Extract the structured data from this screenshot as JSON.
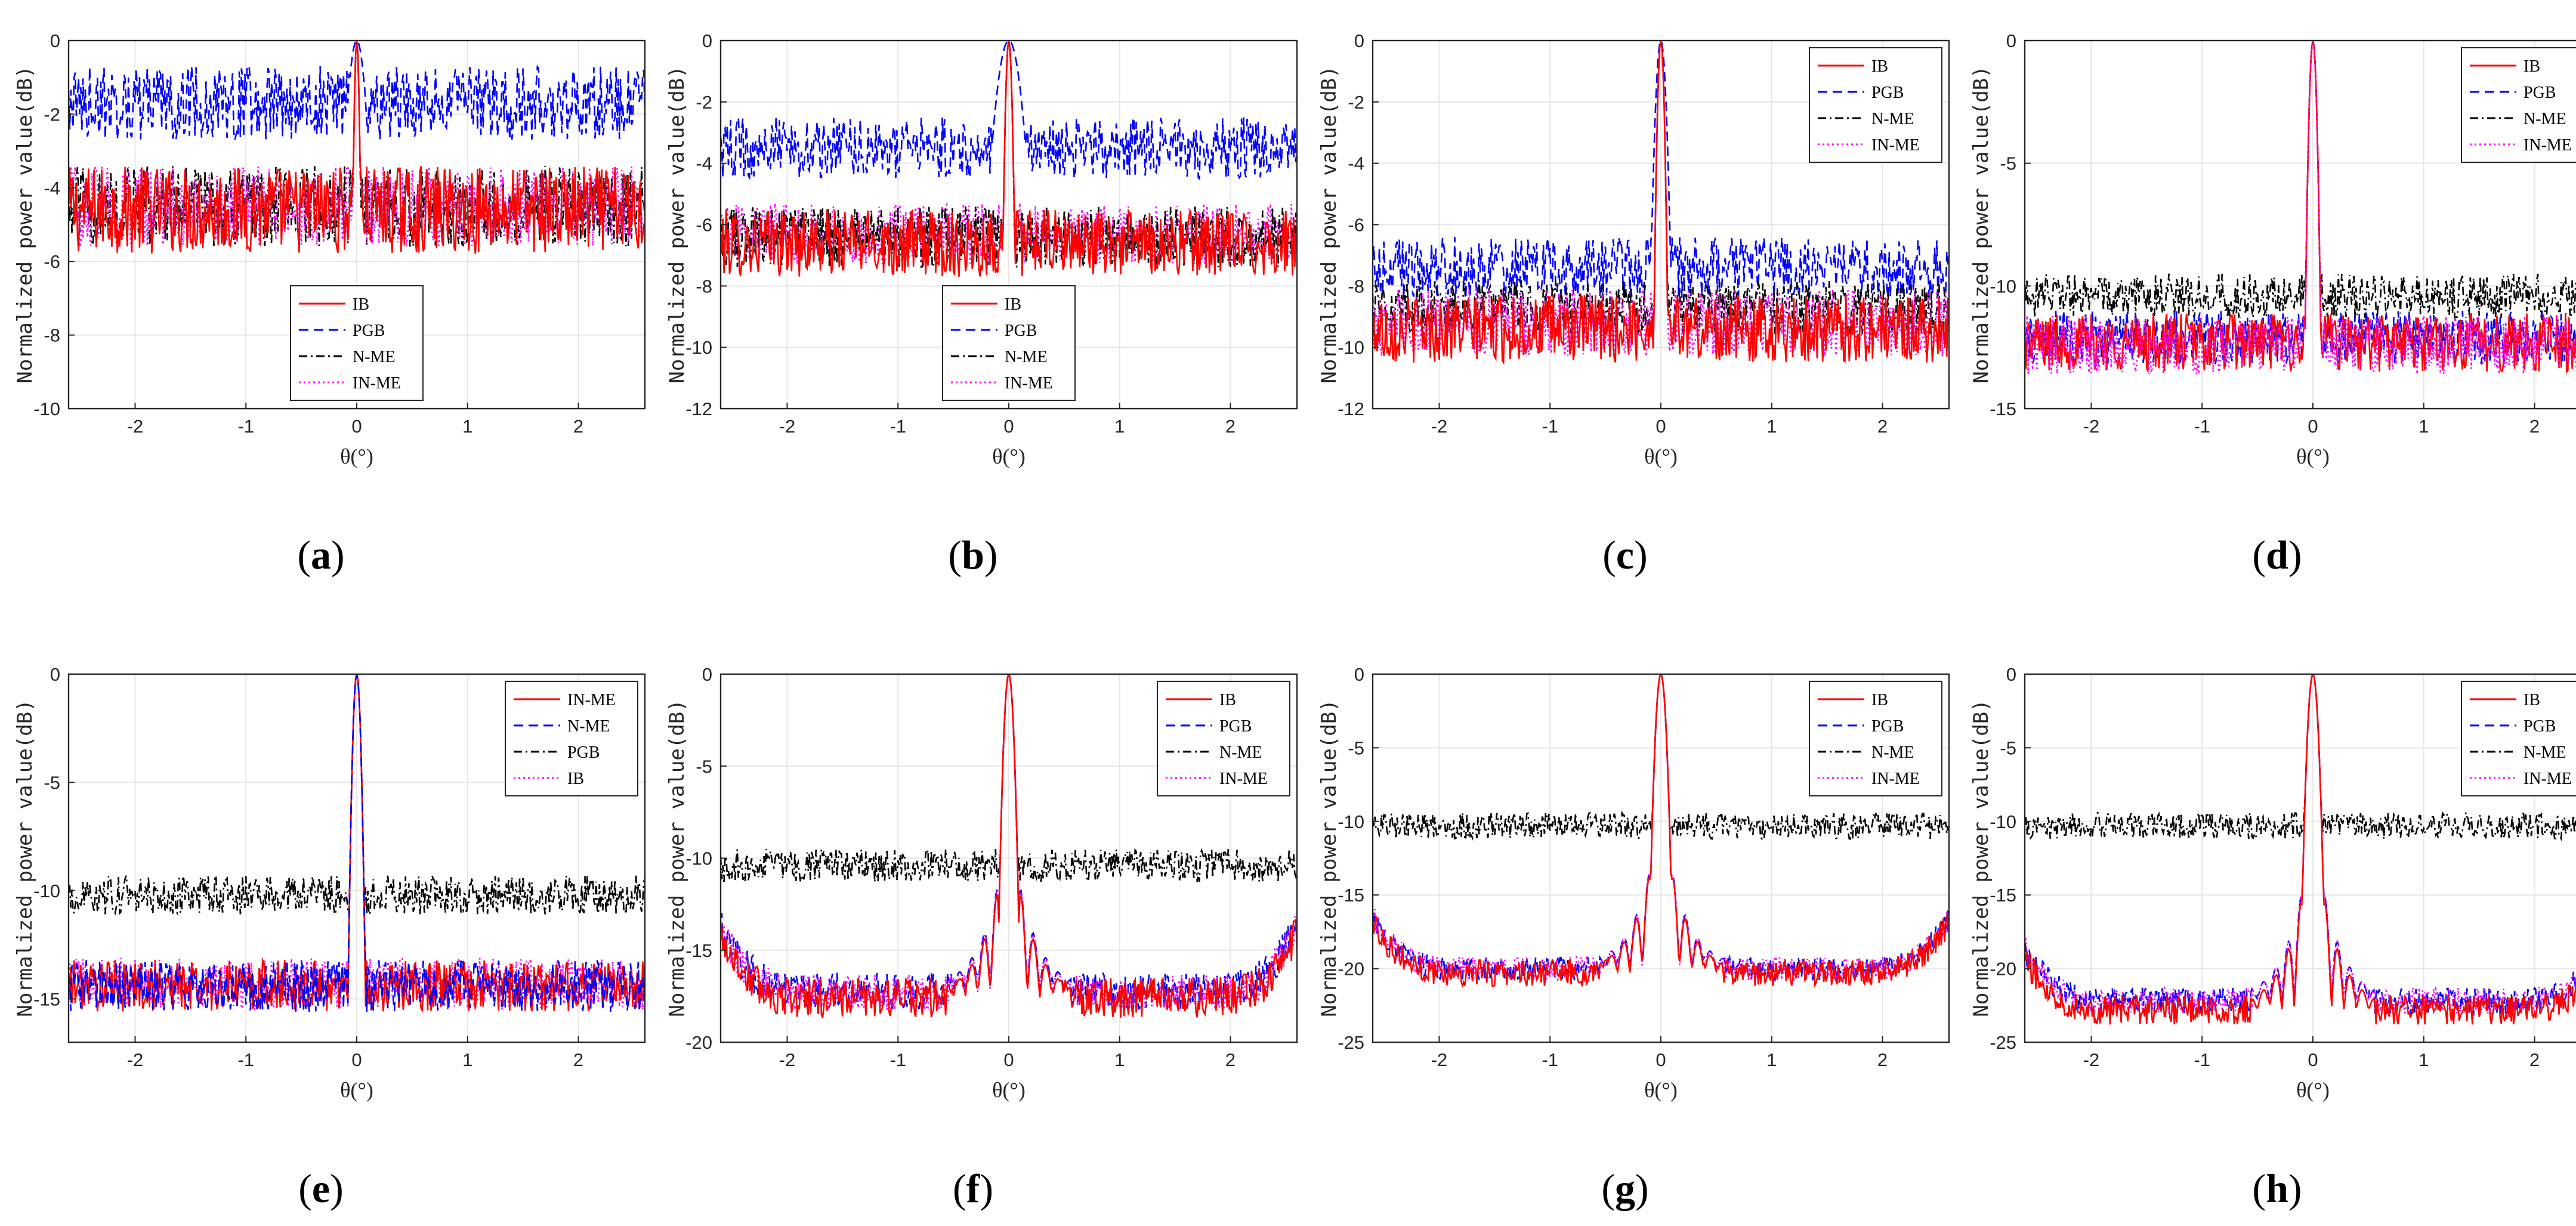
{
  "figure": {
    "label_prefix": "(",
    "label_suffix": ")"
  },
  "chart_data": [
    {
      "label": "a",
      "type": "line",
      "ylabel": "Normalized power value(dB)",
      "xlabel": "θ(°)",
      "xlim": [
        -2.6,
        2.6
      ],
      "ylim": [
        -10,
        0
      ],
      "xticks": [
        "-2",
        "-1",
        "0",
        "1",
        "2"
      ],
      "xtick_values": [
        -2,
        -1,
        0,
        1,
        2
      ],
      "yticks": [
        "0",
        "-2",
        "-4",
        "-6",
        "-8",
        "-10"
      ],
      "ytick_values": [
        0,
        -2,
        -4,
        -6,
        -8,
        -10
      ],
      "legend": {
        "position": "bottom-center",
        "entries": [
          "IB",
          "PGB",
          "N-ME",
          "IN-ME"
        ]
      },
      "series": [
        {
          "name": "IB",
          "color": "#ff0000",
          "style": "solid",
          "floor": -4.6,
          "noise": 1.2,
          "peak": 0,
          "mainlobe_width": 0.04,
          "sidelobe": 0.0
        },
        {
          "name": "PGB",
          "color": "#0000ff",
          "style": "dashed",
          "floor": -1.7,
          "noise": 1.0,
          "peak": 0,
          "mainlobe_width": 0.15,
          "sidelobe": 0.0
        },
        {
          "name": "N-ME",
          "color": "#000000",
          "style": "dashdot",
          "floor": -4.5,
          "noise": 1.1,
          "peak": 0,
          "mainlobe_width": 0.04,
          "sidelobe": 0.0
        },
        {
          "name": "IN-ME",
          "color": "#ff00ff",
          "style": "dotted",
          "floor": -4.5,
          "noise": 1.1,
          "peak": 0,
          "mainlobe_width": 0.04,
          "sidelobe": 0.0
        }
      ]
    },
    {
      "label": "b",
      "type": "line",
      "ylabel": "Normalized power value(dB)",
      "xlabel": "θ(°)",
      "xlim": [
        -2.6,
        2.6
      ],
      "ylim": [
        -12,
        0
      ],
      "xticks": [
        "-2",
        "-1",
        "0",
        "1",
        "2"
      ],
      "xtick_values": [
        -2,
        -1,
        0,
        1,
        2
      ],
      "yticks": [
        "0",
        "-2",
        "-4",
        "-6",
        "-8",
        "-10",
        "-12"
      ],
      "ytick_values": [
        0,
        -2,
        -4,
        -6,
        -8,
        -10,
        -12
      ],
      "legend": {
        "position": "bottom-center",
        "entries": [
          "IB",
          "PGB",
          "N-ME",
          "IN-ME"
        ]
      },
      "series": [
        {
          "name": "IB",
          "color": "#ff0000",
          "style": "solid",
          "floor": -6.6,
          "noise": 1.1,
          "peak": 0,
          "mainlobe_width": 0.05,
          "sidelobe": 0.0
        },
        {
          "name": "PGB",
          "color": "#0000ff",
          "style": "dashed",
          "floor": -3.5,
          "noise": 1.0,
          "peak": 0,
          "mainlobe_width": 0.2,
          "sidelobe": 0.0
        },
        {
          "name": "N-ME",
          "color": "#000000",
          "style": "dashdot",
          "floor": -6.4,
          "noise": 1.0,
          "peak": 0,
          "mainlobe_width": 0.05,
          "sidelobe": 0.0
        },
        {
          "name": "IN-ME",
          "color": "#ff00ff",
          "style": "dotted",
          "floor": -6.3,
          "noise": 1.0,
          "peak": 0,
          "mainlobe_width": 0.05,
          "sidelobe": 0.0
        }
      ]
    },
    {
      "label": "c",
      "type": "line",
      "ylabel": "Normalized power value(dB)",
      "xlabel": "θ(°)",
      "xlim": [
        -2.6,
        2.6
      ],
      "ylim": [
        -12,
        0
      ],
      "xticks": [
        "-2",
        "-1",
        "0",
        "1",
        "2"
      ],
      "xtick_values": [
        -2,
        -1,
        0,
        1,
        2
      ],
      "yticks": [
        "0",
        "-2",
        "-4",
        "-6",
        "-8",
        "-10",
        "-12"
      ],
      "ytick_values": [
        0,
        -2,
        -4,
        -6,
        -8,
        -10,
        -12
      ],
      "legend": {
        "position": "top-right",
        "entries": [
          "IB",
          "PGB",
          "N-ME",
          "IN-ME"
        ]
      },
      "series": [
        {
          "name": "IB",
          "color": "#ff0000",
          "style": "solid",
          "floor": -9.4,
          "noise": 1.1,
          "peak": 0,
          "mainlobe_width": 0.05,
          "sidelobe": 0.0
        },
        {
          "name": "PGB",
          "color": "#0000ff",
          "style": "dashed",
          "floor": -7.4,
          "noise": 1.0,
          "peak": 0,
          "mainlobe_width": 0.08,
          "sidelobe": 0.0
        },
        {
          "name": "N-ME",
          "color": "#000000",
          "style": "dashdot",
          "floor": -8.7,
          "noise": 0.9,
          "peak": 0,
          "mainlobe_width": 0.05,
          "sidelobe": 0.0
        },
        {
          "name": "IN-ME",
          "color": "#ff00ff",
          "style": "dotted",
          "floor": -9.2,
          "noise": 1.1,
          "peak": 0,
          "mainlobe_width": 0.05,
          "sidelobe": 0.0
        }
      ]
    },
    {
      "label": "d",
      "type": "line",
      "ylabel": "Normalized power value(dB)",
      "xlabel": "θ(°)",
      "xlim": [
        -2.6,
        2.6
      ],
      "ylim": [
        -15,
        0
      ],
      "xticks": [
        "-2",
        "-1",
        "0",
        "1",
        "2"
      ],
      "xtick_values": [
        -2,
        -1,
        0,
        1,
        2
      ],
      "yticks": [
        "0",
        "-5",
        "-10",
        "-15"
      ],
      "ytick_values": [
        0,
        -5,
        -10,
        -15
      ],
      "legend": {
        "position": "top-right",
        "entries": [
          "IB",
          "PGB",
          "N-ME",
          "IN-ME"
        ]
      },
      "series": [
        {
          "name": "IB",
          "color": "#ff0000",
          "style": "solid",
          "floor": -12.3,
          "noise": 1.2,
          "peak": 0,
          "mainlobe_width": 0.05,
          "sidelobe": 0.0
        },
        {
          "name": "PGB",
          "color": "#0000ff",
          "style": "dashed",
          "floor": -12.1,
          "noise": 1.1,
          "peak": 0,
          "mainlobe_width": 0.05,
          "sidelobe": 0.0
        },
        {
          "name": "N-ME",
          "color": "#000000",
          "style": "dashdot",
          "floor": -10.4,
          "noise": 0.9,
          "peak": 0,
          "mainlobe_width": 0.05,
          "sidelobe": 0.0
        },
        {
          "name": "IN-ME",
          "color": "#ff00ff",
          "style": "dotted",
          "floor": -12.4,
          "noise": 1.2,
          "peak": 0,
          "mainlobe_width": 0.05,
          "sidelobe": 0.0
        }
      ]
    },
    {
      "label": "e",
      "type": "line",
      "ylabel": "Normalized power value(dB)",
      "xlabel": "θ(°)",
      "xlim": [
        -2.6,
        2.6
      ],
      "ylim": [
        -17,
        0
      ],
      "xticks": [
        "-2",
        "-1",
        "0",
        "1",
        "2"
      ],
      "xtick_values": [
        -2,
        -1,
        0,
        1,
        2
      ],
      "yticks": [
        "0",
        "-5",
        "-10",
        "-15"
      ],
      "ytick_values": [
        0,
        -5,
        -10,
        -15
      ],
      "legend": {
        "position": "top-right",
        "entries": [
          "IN-ME",
          "N-ME",
          "PGB",
          "IB"
        ]
      },
      "series": [
        {
          "name": "IN-ME",
          "color": "#ff0000",
          "style": "solid",
          "floor": -14.4,
          "noise": 1.2,
          "peak": 0,
          "mainlobe_width": 0.05,
          "sidelobe": 0.0
        },
        {
          "name": "N-ME",
          "color": "#0000ff",
          "style": "dashed",
          "floor": -14.4,
          "noise": 1.2,
          "peak": 0,
          "mainlobe_width": 0.05,
          "sidelobe": 0.0
        },
        {
          "name": "PGB",
          "color": "#000000",
          "style": "dashdot",
          "floor": -10.2,
          "noise": 0.9,
          "peak": 0,
          "mainlobe_width": 0.05,
          "sidelobe": 0.0
        },
        {
          "name": "IB",
          "color": "#ff00ff",
          "style": "dotted",
          "floor": -14.3,
          "noise": 1.2,
          "peak": 0,
          "mainlobe_width": 0.05,
          "sidelobe": 0.0
        }
      ]
    },
    {
      "label": "f",
      "type": "line",
      "ylabel": "Normalized power value(dB)",
      "xlabel": "θ(°)",
      "xlim": [
        -2.6,
        2.6
      ],
      "ylim": [
        -20,
        0
      ],
      "xticks": [
        "-2",
        "-1",
        "0",
        "1",
        "2"
      ],
      "xtick_values": [
        -2,
        -1,
        0,
        1,
        2
      ],
      "yticks": [
        "0",
        "-5",
        "-10",
        "-15",
        "-20"
      ],
      "ytick_values": [
        0,
        -5,
        -10,
        -15,
        -20
      ],
      "legend": {
        "position": "top-right",
        "entries": [
          "IB",
          "PGB",
          "N-ME",
          "IN-ME"
        ]
      },
      "series": [
        {
          "name": "IB",
          "color": "#ff0000",
          "style": "solid",
          "floor": -17.6,
          "noise": 1.1,
          "peak": 0,
          "mainlobe_width": 0.06,
          "sidelobe": 1.0
        },
        {
          "name": "PGB",
          "color": "#0000ff",
          "style": "dashed",
          "floor": -17.2,
          "noise": 1.0,
          "peak": 0,
          "mainlobe_width": 0.06,
          "sidelobe": 1.0
        },
        {
          "name": "N-ME",
          "color": "#000000",
          "style": "dashdot",
          "floor": -10.4,
          "noise": 0.9,
          "peak": 0,
          "mainlobe_width": 0.06,
          "sidelobe": 0.0
        },
        {
          "name": "IN-ME",
          "color": "#ff00ff",
          "style": "dotted",
          "floor": -17.3,
          "noise": 1.0,
          "peak": 0,
          "mainlobe_width": 0.06,
          "sidelobe": 1.0
        }
      ]
    },
    {
      "label": "g",
      "type": "line",
      "ylabel": "Normalized power value(dB)",
      "xlabel": "θ(°)",
      "xlim": [
        -2.6,
        2.6
      ],
      "ylim": [
        -25,
        0
      ],
      "xticks": [
        "-2",
        "-1",
        "0",
        "1",
        "2"
      ],
      "xtick_values": [
        -2,
        -1,
        0,
        1,
        2
      ],
      "yticks": [
        "0",
        "-5",
        "-10",
        "-15",
        "-20",
        "-25"
      ],
      "ytick_values": [
        0,
        -5,
        -10,
        -15,
        -20,
        -25
      ],
      "legend": {
        "position": "top-right",
        "entries": [
          "IB",
          "PGB",
          "N-ME",
          "IN-ME"
        ]
      },
      "series": [
        {
          "name": "IB",
          "color": "#ff0000",
          "style": "solid",
          "floor": -20.3,
          "noise": 0.9,
          "peak": 0,
          "mainlobe_width": 0.06,
          "sidelobe": 1.0
        },
        {
          "name": "PGB",
          "color": "#0000ff",
          "style": "dashed",
          "floor": -20.0,
          "noise": 0.8,
          "peak": 0,
          "mainlobe_width": 0.06,
          "sidelobe": 1.0
        },
        {
          "name": "N-ME",
          "color": "#000000",
          "style": "dashdot",
          "floor": -10.3,
          "noise": 0.9,
          "peak": 0,
          "mainlobe_width": 0.06,
          "sidelobe": 0.0
        },
        {
          "name": "IN-ME",
          "color": "#ff00ff",
          "style": "dotted",
          "floor": -20.0,
          "noise": 0.8,
          "peak": 0,
          "mainlobe_width": 0.06,
          "sidelobe": 1.0
        }
      ]
    },
    {
      "label": "h",
      "type": "line",
      "ylabel": "Normalized power value(dB)",
      "xlabel": "θ(°)",
      "xlim": [
        -2.6,
        2.6
      ],
      "ylim": [
        -25,
        0
      ],
      "xticks": [
        "-2",
        "-1",
        "0",
        "1",
        "2"
      ],
      "xtick_values": [
        -2,
        -1,
        0,
        1,
        2
      ],
      "yticks": [
        "0",
        "-5",
        "-10",
        "-15",
        "-20",
        "-25"
      ],
      "ytick_values": [
        0,
        -5,
        -10,
        -15,
        -20,
        -25
      ],
      "legend": {
        "position": "top-right",
        "entries": [
          "IB",
          "PGB",
          "N-ME",
          "IN-ME"
        ]
      },
      "series": [
        {
          "name": "IB",
          "color": "#ff0000",
          "style": "solid",
          "floor": -22.8,
          "noise": 1.0,
          "peak": 0,
          "mainlobe_width": 0.06,
          "sidelobe": 1.0
        },
        {
          "name": "PGB",
          "color": "#0000ff",
          "style": "dashed",
          "floor": -22.2,
          "noise": 0.9,
          "peak": 0,
          "mainlobe_width": 0.06,
          "sidelobe": 1.0
        },
        {
          "name": "N-ME",
          "color": "#000000",
          "style": "dashdot",
          "floor": -10.3,
          "noise": 0.9,
          "peak": 0,
          "mainlobe_width": 0.06,
          "sidelobe": 0.0
        },
        {
          "name": "IN-ME",
          "color": "#ff00ff",
          "style": "dotted",
          "floor": -22.2,
          "noise": 0.9,
          "peak": 0,
          "mainlobe_width": 0.06,
          "sidelobe": 1.0
        }
      ]
    }
  ]
}
